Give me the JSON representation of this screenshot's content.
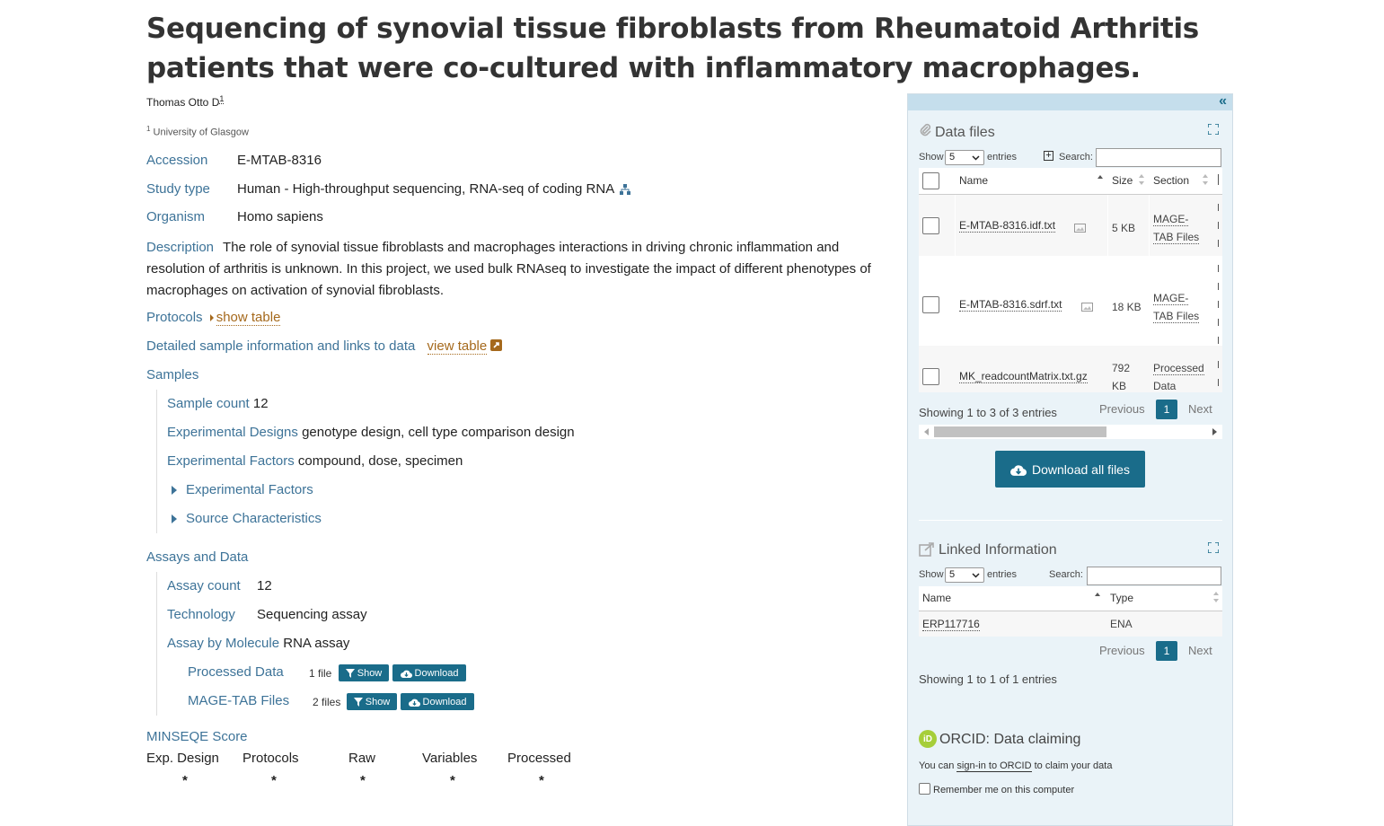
{
  "title": "Sequencing of synovial tissue fibroblasts from Rheumatoid Arthritis patients that were co-cultured with inflammatory macrophages.",
  "author": "Thomas Otto D",
  "author_sup": "1",
  "affiliation_num": "1",
  "affiliation": "University of Glasgow",
  "meta": {
    "accession_label": "Accession",
    "accession": "E-MTAB-8316",
    "study_type_label": "Study type",
    "study_type": "Human - High-throughput sequencing, RNA-seq of coding RNA",
    "organism_label": "Organism",
    "organism": "Homo sapiens",
    "description_label": "Description",
    "description": "The role of synovial tissue fibroblasts and macrophages interactions in driving chronic inflammation and resolution of arthritis is unknown. In this project, we used bulk RNAseq to investigate the impact of different phenotypes of macrophages on activation of synovial fibroblasts.",
    "protocols_label": "Protocols",
    "show_table": "show table",
    "detailed_label": "Detailed sample information and links to data",
    "view_table": "view table",
    "samples_label": "Samples"
  },
  "samples": {
    "count_label": "Sample count",
    "count": "12",
    "designs_label": "Experimental Designs",
    "designs": "genotype design, cell type comparison design",
    "factors_label": "Experimental Factors",
    "factors": "compound, dose, specimen",
    "exp_factors_toggle": "Experimental Factors",
    "source_toggle": "Source Characteristics"
  },
  "assays": {
    "label": "Assays and Data",
    "count_label": "Assay count",
    "count": "12",
    "tech_label": "Technology",
    "tech": "Sequencing assay",
    "molecule_label": "Assay by Molecule",
    "molecule": "RNA assay",
    "processed_label": "Processed Data",
    "processed_files": "1 file",
    "magetab_label": "MAGE-TAB Files",
    "magetab_files": "2 files",
    "show": "Show",
    "download": "Download"
  },
  "minseqe": {
    "label": "MINSEQE Score",
    "headers": [
      "Exp. Design",
      "Protocols",
      "Raw",
      "Variables",
      "Processed"
    ],
    "scores": [
      "*",
      "*",
      "*",
      "*",
      "*"
    ]
  },
  "panel": {
    "collapse_icon": "«",
    "data_files": {
      "title": "Data files",
      "show": "Show",
      "entries_select": "5",
      "entries": "entries",
      "search_label": "Search:",
      "columns": [
        "Name",
        "Size",
        "Section"
      ],
      "rows": [
        {
          "name": "E-MTAB-8316.idf.txt",
          "size": "5 KB",
          "section1": "MAGE-",
          "section2": "TAB Files"
        },
        {
          "name": "E-MTAB-8316.sdrf.txt",
          "size": "18 KB",
          "section1": "MAGE-",
          "section2": "TAB Files"
        },
        {
          "name": "MK_readcountMatrix.txt.gz",
          "size1": "792",
          "size2": "KB",
          "section1": "Processed",
          "section2": "Data"
        }
      ],
      "info": "Showing 1 to 3 of 3 entries",
      "previous": "Previous",
      "page": "1",
      "next": "Next",
      "download_all": "Download all files"
    },
    "linked": {
      "title": "Linked Information",
      "show": "Show",
      "entries_select": "5",
      "entries": "entries",
      "search_label": "Search:",
      "columns": [
        "Name",
        "Type"
      ],
      "rows": [
        {
          "name": "ERP117716",
          "type": "ENA"
        }
      ],
      "previous": "Previous",
      "page": "1",
      "next": "Next",
      "info": "Showing 1 to 1 of 1 entries"
    },
    "orcid": {
      "title": "ORCID: Data claiming",
      "you_can": "You can",
      "sign_in": "sign-in to ORCID",
      "claim": "to claim your data",
      "remember": "Remember me on this computer"
    }
  },
  "colors": {
    "link": "#3d7398",
    "button": "#1a6c8a",
    "orange": "#a5691c",
    "panel_bg": "#eaf3f8"
  }
}
